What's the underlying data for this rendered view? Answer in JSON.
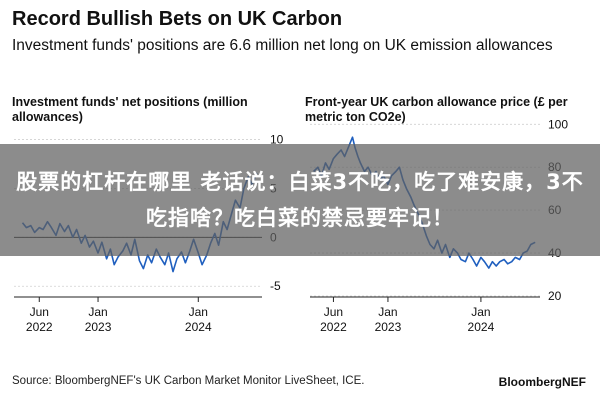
{
  "headline": "Record Bullish Bets on UK Carbon",
  "subhead": "Investment funds' positions are 6.6 million net long on UK emission allowances",
  "overlay_text": "股票的杠杆在哪里 老话说：白菜3不吃，吃了难安康，3不吃指啥？吃白菜的禁忌要牢记！",
  "source": "Source: BloombergNEF's UK Carbon Market Monitor LiveSheet, ICE.",
  "brand": "BloombergNEF",
  "colors": {
    "line": "#1f5fbf",
    "axis": "#222222",
    "grid": "#d0d0d0",
    "overlay": "#5f5f5f"
  },
  "chart_data": [
    {
      "type": "line",
      "title": "Investment funds' net positions (million allowances)",
      "x_ticks": [
        {
          "date": "2022-06-01",
          "line1": "Jun",
          "line2": "2022"
        },
        {
          "date": "2023-01-01",
          "line1": "Jan",
          "line2": "2023"
        },
        {
          "date": "2024-01-01",
          "line1": "Jan",
          "line2": "2024"
        }
      ],
      "y_ticks": [
        10,
        5,
        0,
        -5
      ],
      "ylim": [
        -6,
        12
      ],
      "series": [
        {
          "x": [
            "2022-04-01",
            "2022-04-15",
            "2022-05-01",
            "2022-05-15",
            "2022-06-01",
            "2022-06-15",
            "2022-07-01",
            "2022-07-15",
            "2022-08-01",
            "2022-08-15",
            "2022-09-01",
            "2022-09-15",
            "2022-10-01",
            "2022-10-15",
            "2022-11-01",
            "2022-11-15",
            "2022-12-01",
            "2022-12-15",
            "2023-01-01",
            "2023-01-15",
            "2023-02-01",
            "2023-02-15",
            "2023-03-01",
            "2023-03-15",
            "2023-04-01",
            "2023-04-15",
            "2023-05-01",
            "2023-05-15",
            "2023-06-01",
            "2023-06-15",
            "2023-07-01",
            "2023-07-15",
            "2023-08-01",
            "2023-08-15",
            "2023-09-01",
            "2023-09-15",
            "2023-10-01",
            "2023-10-15",
            "2023-11-01",
            "2023-11-15",
            "2023-12-01",
            "2023-12-15",
            "2024-01-01",
            "2024-01-15",
            "2024-02-01",
            "2024-02-15",
            "2024-03-01",
            "2024-03-15",
            "2024-04-01",
            "2024-04-15",
            "2024-05-01",
            "2024-05-15",
            "2024-06-01",
            "2024-06-15",
            "2024-07-01",
            "2024-07-15",
            "2024-08-01"
          ],
          "values": [
            1.5,
            1.0,
            1.2,
            0.5,
            1.0,
            0.8,
            1.6,
            1.0,
            0.2,
            1.4,
            0.6,
            1.2,
            0.0,
            0.8,
            -0.6,
            0.2,
            -1.0,
            -0.4,
            -1.6,
            -0.5,
            -2.2,
            -1.2,
            -2.8,
            -2.0,
            -1.4,
            -0.6,
            -1.8,
            -0.2,
            -2.4,
            -3.2,
            -1.8,
            -2.6,
            -1.2,
            -2.0,
            -2.8,
            -1.6,
            -3.5,
            -2.2,
            -1.5,
            -2.6,
            -1.4,
            -0.2,
            -1.6,
            -2.8,
            -1.8,
            -0.6,
            0.4,
            -0.8,
            1.6,
            0.8,
            2.4,
            3.8,
            3.0,
            5.0,
            6.2,
            5.4,
            6.6
          ]
        }
      ]
    },
    {
      "type": "line",
      "title": "Front-year UK carbon allowance price (£ per metric ton CO2e)",
      "x_ticks": [
        {
          "date": "2022-06-01",
          "line1": "Jun",
          "line2": "2022"
        },
        {
          "date": "2023-01-01",
          "line1": "Jan",
          "line2": "2023"
        },
        {
          "date": "2024-01-01",
          "line1": "Jan",
          "line2": "2024"
        }
      ],
      "y_ticks": [
        100,
        80,
        60,
        40,
        20
      ],
      "ylim": [
        20,
        102
      ],
      "series": [
        {
          "x": [
            "2022-03-15",
            "2022-04-01",
            "2022-04-15",
            "2022-05-01",
            "2022-05-15",
            "2022-06-01",
            "2022-06-15",
            "2022-07-01",
            "2022-07-15",
            "2022-08-01",
            "2022-08-15",
            "2022-08-25",
            "2022-09-05",
            "2022-09-15",
            "2022-10-01",
            "2022-10-15",
            "2022-11-01",
            "2022-11-15",
            "2022-12-01",
            "2022-12-15",
            "2023-01-01",
            "2023-01-15",
            "2023-02-01",
            "2023-02-15",
            "2023-03-01",
            "2023-03-15",
            "2023-04-01",
            "2023-04-15",
            "2023-05-01",
            "2023-05-15",
            "2023-06-01",
            "2023-06-15",
            "2023-07-01",
            "2023-07-15",
            "2023-08-01",
            "2023-08-15",
            "2023-09-01",
            "2023-09-15",
            "2023-10-01",
            "2023-10-15",
            "2023-11-01",
            "2023-11-15",
            "2023-12-01",
            "2023-12-15",
            "2024-01-01",
            "2024-01-15",
            "2024-02-01",
            "2024-02-15",
            "2024-03-01",
            "2024-03-15",
            "2024-04-01",
            "2024-04-15",
            "2024-05-01",
            "2024-05-15",
            "2024-06-01",
            "2024-06-15",
            "2024-07-01",
            "2024-07-15",
            "2024-08-01"
          ],
          "values": [
            78,
            80,
            76,
            82,
            79,
            84,
            86,
            88,
            85,
            90,
            94,
            89,
            85,
            82,
            78,
            80,
            76,
            78,
            74,
            76,
            72,
            76,
            78,
            80,
            74,
            70,
            66,
            62,
            58,
            54,
            48,
            44,
            42,
            46,
            40,
            44,
            38,
            42,
            40,
            37,
            36,
            40,
            37,
            34,
            38,
            36,
            33,
            36,
            34,
            36,
            37,
            35,
            36,
            38,
            37,
            40,
            41,
            44,
            45
          ]
        }
      ]
    }
  ]
}
